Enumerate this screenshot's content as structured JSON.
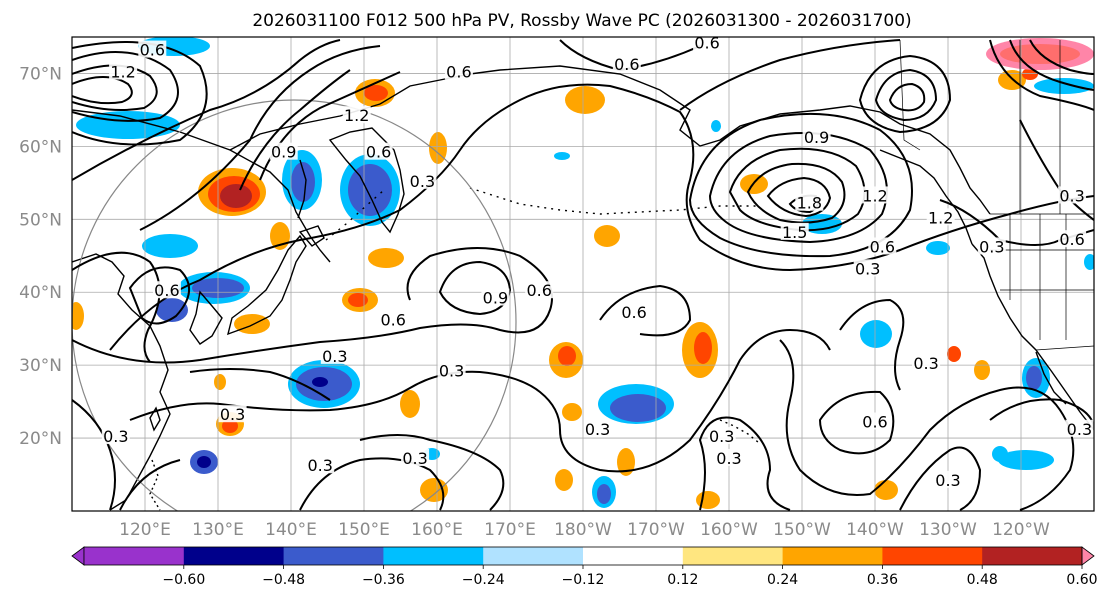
{
  "title": "2026031100 F012 500 hPa PV, Rossby Wave PC (2026031300 - 2026031700)",
  "map": {
    "lon_range": [
      110,
      250
    ],
    "lat_range": [
      10,
      75
    ],
    "lat_ticks": [
      {
        "value": 20,
        "label": "20°N"
      },
      {
        "value": 30,
        "label": "30°N"
      },
      {
        "value": 40,
        "label": "40°N"
      },
      {
        "value": 50,
        "label": "50°N"
      },
      {
        "value": 60,
        "label": "60°N"
      },
      {
        "value": 70,
        "label": "70°N"
      }
    ],
    "lon_ticks": [
      {
        "value": 120,
        "label": "120°E"
      },
      {
        "value": 130,
        "label": "130°E"
      },
      {
        "value": 140,
        "label": "140°E"
      },
      {
        "value": 150,
        "label": "150°E"
      },
      {
        "value": 160,
        "label": "160°E"
      },
      {
        "value": 170,
        "label": "170°E"
      },
      {
        "value": 180,
        "label": "180°W"
      },
      {
        "value": 190,
        "label": "170°W"
      },
      {
        "value": 200,
        "label": "160°W"
      },
      {
        "value": 210,
        "label": "150°W"
      },
      {
        "value": 220,
        "label": "140°W"
      },
      {
        "value": 230,
        "label": "130°W"
      },
      {
        "value": 240,
        "label": "120°W"
      }
    ],
    "contour_labels": [
      {
        "text": "0.6",
        "lon": 121,
        "lat": 73
      },
      {
        "text": "1.2",
        "lon": 117,
        "lat": 70
      },
      {
        "text": "0.9",
        "lon": 139,
        "lat": 59
      },
      {
        "text": "1.2",
        "lon": 149,
        "lat": 64
      },
      {
        "text": "0.6",
        "lon": 152,
        "lat": 59
      },
      {
        "text": "0.3",
        "lon": 158,
        "lat": 55
      },
      {
        "text": "0.6",
        "lon": 163,
        "lat": 70
      },
      {
        "text": "0.6",
        "lon": 197,
        "lat": 74
      },
      {
        "text": "0.6",
        "lon": 186,
        "lat": 71
      },
      {
        "text": "0.9",
        "lon": 212,
        "lat": 61
      },
      {
        "text": "1.2",
        "lon": 220,
        "lat": 53
      },
      {
        "text": "1.8",
        "lon": 211,
        "lat": 52
      },
      {
        "text": "1.5",
        "lon": 209,
        "lat": 48
      },
      {
        "text": "1.2",
        "lon": 229,
        "lat": 50
      },
      {
        "text": "0.6",
        "lon": 221,
        "lat": 46
      },
      {
        "text": "0.3",
        "lon": 219,
        "lat": 43
      },
      {
        "text": "0.3",
        "lon": 236,
        "lat": 46
      },
      {
        "text": "0.3",
        "lon": 247,
        "lat": 53
      },
      {
        "text": "0.6",
        "lon": 247,
        "lat": 47
      },
      {
        "text": "0.6",
        "lon": 123,
        "lat": 40
      },
      {
        "text": "0.9",
        "lon": 168,
        "lat": 39
      },
      {
        "text": "0.6",
        "lon": 174,
        "lat": 40
      },
      {
        "text": "0.6",
        "lon": 154,
        "lat": 36
      },
      {
        "text": "0.6",
        "lon": 187,
        "lat": 37
      },
      {
        "text": "0.3",
        "lon": 146,
        "lat": 31
      },
      {
        "text": "0.3",
        "lon": 162,
        "lat": 29
      },
      {
        "text": "0.3",
        "lon": 132,
        "lat": 23
      },
      {
        "text": "0.3",
        "lon": 116,
        "lat": 20
      },
      {
        "text": "0.3",
        "lon": 144,
        "lat": 16
      },
      {
        "text": "0.3",
        "lon": 157,
        "lat": 17
      },
      {
        "text": "0.3",
        "lon": 182,
        "lat": 21
      },
      {
        "text": "0.3",
        "lon": 200,
        "lat": 17
      },
      {
        "text": "0.3",
        "lon": 199,
        "lat": 20
      },
      {
        "text": "0.3",
        "lon": 227,
        "lat": 30
      },
      {
        "text": "0.6",
        "lon": 220,
        "lat": 22
      },
      {
        "text": "0.3",
        "lon": 230,
        "lat": 14
      },
      {
        "text": "0.3",
        "lon": 248,
        "lat": 21
      }
    ]
  },
  "colorbar": {
    "ticks": [
      "−0.60",
      "−0.48",
      "−0.36",
      "−0.24",
      "−0.12",
      "0.12",
      "0.24",
      "0.36",
      "0.48",
      "0.60"
    ],
    "colors": [
      "#9932cc",
      "#00008b",
      "#3b5bcc",
      "#00bfff",
      "#b0e2ff",
      "#ffffff",
      "#ffe680",
      "#ffa500",
      "#ff4500",
      "#b22222",
      "#ff85a8"
    ]
  }
}
